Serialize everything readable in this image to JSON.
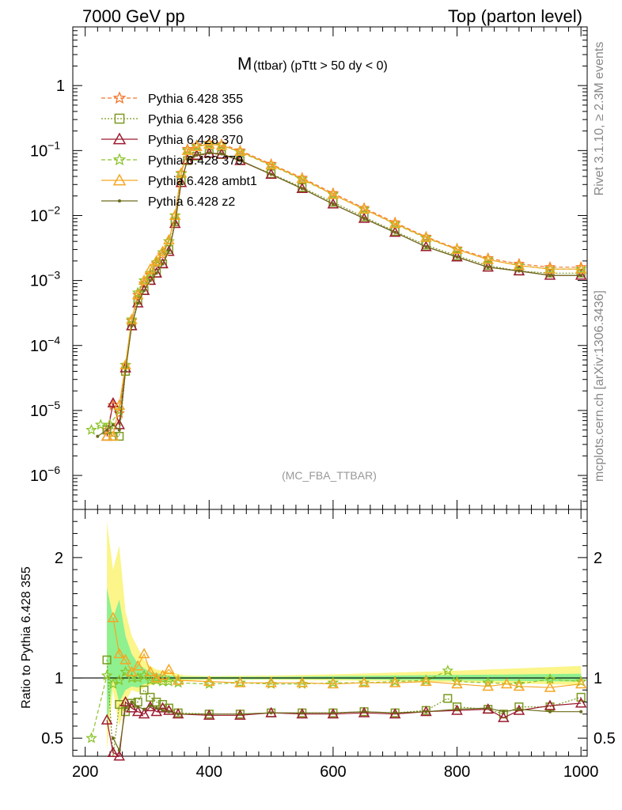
{
  "header": {
    "left": "7000 GeV pp",
    "right": "Top (parton level)"
  },
  "side_labels": {
    "rivet": "Rivet 3.1.10, ≥ 2.3M events",
    "source": "mcplots.cern.ch [arXiv:1306.3436]"
  },
  "chart_data": [
    {
      "type": "line",
      "title_main": "M",
      "title_rest": "(ttbar) (pTtt > 50 dy < 0)",
      "watermark": "(MC_FBA_TTBAR)",
      "xlabel": "",
      "ylabel": "",
      "xlim": [
        180,
        1010
      ],
      "ylim": [
        3e-07,
        8
      ],
      "yscale": "log",
      "ytick_labels": [
        {
          "value": 1,
          "base": "1",
          "exp": ""
        },
        {
          "value": 0.1,
          "base": "10",
          "exp": "−1"
        },
        {
          "value": 0.01,
          "base": "10",
          "exp": "−2"
        },
        {
          "value": 0.001,
          "base": "10",
          "exp": "−3"
        },
        {
          "value": 0.0001,
          "base": "10",
          "exp": "−4"
        },
        {
          "value": 1e-05,
          "base": "10",
          "exp": "−5"
        },
        {
          "value": 1e-06,
          "base": "10",
          "exp": "−6"
        }
      ],
      "legend_placement": "top-left",
      "series": [
        {
          "name": "Pythia 6.428 355",
          "color": "#f4772a",
          "marker": "star",
          "dash": "5,3",
          "x": [
            235,
            245,
            255,
            265,
            275,
            285,
            295,
            305,
            315,
            325,
            335,
            345,
            355,
            365,
            380,
            400,
            420,
            450,
            500,
            550,
            600,
            650,
            700,
            750,
            800,
            850,
            900,
            950,
            1000
          ],
          "y": [
            5e-06,
            1.2e-05,
            9e-06,
            5e-05,
            0.00024,
            0.0006,
            0.0009,
            0.0012,
            0.0018,
            0.0025,
            0.004,
            0.01,
            0.045,
            0.105,
            0.12,
            0.13,
            0.125,
            0.1,
            0.062,
            0.038,
            0.022,
            0.013,
            0.0078,
            0.0047,
            0.0031,
            0.0022,
            0.0018,
            0.0016,
            0.0016
          ]
        },
        {
          "name": "Pythia 6.428 356",
          "color": "#7b9a1f",
          "marker": "square",
          "dash": "2,2",
          "x": [
            235,
            245,
            255,
            265,
            275,
            285,
            295,
            305,
            315,
            325,
            335,
            345,
            355,
            365,
            380,
            400,
            420,
            450,
            500,
            550,
            600,
            650,
            700,
            750,
            800,
            850,
            900,
            950,
            1000
          ],
          "y": [
            5e-06,
            4e-06,
            4e-06,
            4e-05,
            0.0002,
            0.0005,
            0.0007,
            0.001,
            0.0013,
            0.0018,
            0.003,
            0.008,
            0.035,
            0.07,
            0.082,
            0.09,
            0.087,
            0.07,
            0.044,
            0.027,
            0.016,
            0.0095,
            0.0057,
            0.0035,
            0.0024,
            0.0017,
            0.0014,
            0.0013,
            0.0013
          ]
        },
        {
          "name": "Pythia 6.428 370",
          "color": "#9b1b30",
          "marker": "triangle",
          "dash": "",
          "x": [
            235,
            245,
            255,
            265,
            275,
            285,
            295,
            305,
            315,
            325,
            335,
            345,
            355,
            365,
            380,
            400,
            420,
            450,
            500,
            550,
            600,
            650,
            700,
            750,
            800,
            850,
            900,
            950,
            1000
          ],
          "y": [
            4e-06,
            1.3e-05,
            6e-06,
            4.5e-05,
            0.0002,
            0.00045,
            0.0007,
            0.001,
            0.0013,
            0.0018,
            0.0028,
            0.0075,
            0.032,
            0.072,
            0.084,
            0.091,
            0.088,
            0.07,
            0.043,
            0.026,
            0.015,
            0.009,
            0.0055,
            0.0033,
            0.0023,
            0.0016,
            0.0014,
            0.0012,
            0.0012
          ]
        },
        {
          "name": "Pythia 6.428 379",
          "color": "#8bc42a",
          "marker": "star",
          "dash": "5,3",
          "x": [
            210,
            225,
            240,
            255,
            265,
            275,
            285,
            295,
            305,
            315,
            325,
            335,
            345,
            355,
            365,
            380,
            400,
            420,
            450,
            500,
            550,
            600,
            650,
            700,
            750,
            800,
            850,
            900,
            950,
            1000
          ],
          "y": [
            5e-06,
            6e-06,
            6e-06,
            1e-05,
            5e-05,
            0.00025,
            0.00065,
            0.001,
            0.0013,
            0.0019,
            0.0027,
            0.004,
            0.01,
            0.044,
            0.1,
            0.115,
            0.125,
            0.12,
            0.095,
            0.059,
            0.036,
            0.021,
            0.0125,
            0.0074,
            0.0045,
            0.003,
            0.0021,
            0.0017,
            0.0015,
            0.0015
          ]
        },
        {
          "name": "Pythia 6.428 ambt1",
          "color": "#f5a623",
          "marker": "triangle",
          "dash": "",
          "x": [
            235,
            245,
            255,
            265,
            275,
            285,
            295,
            305,
            315,
            325,
            335,
            345,
            355,
            365,
            380,
            400,
            420,
            450,
            500,
            550,
            600,
            650,
            700,
            750,
            800,
            850,
            900,
            950,
            1000
          ],
          "y": [
            4e-06,
            4e-06,
            1.2e-05,
            5e-05,
            0.00025,
            0.0006,
            0.001,
            0.0015,
            0.002,
            0.0028,
            0.0042,
            0.01,
            0.045,
            0.1,
            0.115,
            0.125,
            0.12,
            0.097,
            0.06,
            0.037,
            0.021,
            0.0125,
            0.0075,
            0.0046,
            0.003,
            0.0021,
            0.0017,
            0.0015,
            0.0015
          ]
        },
        {
          "name": "Pythia 6.428 z2",
          "color": "#6b6b1a",
          "marker": "dot",
          "dash": "",
          "x": [
            220,
            235,
            245,
            255,
            265,
            275,
            285,
            295,
            305,
            315,
            325,
            335,
            345,
            355,
            365,
            380,
            400,
            420,
            450,
            500,
            550,
            600,
            650,
            700,
            750,
            800,
            850,
            900,
            950,
            1000
          ],
          "y": [
            4e-06,
            5e-06,
            6e-06,
            5e-06,
            4e-05,
            0.0002,
            0.00045,
            0.0007,
            0.001,
            0.0013,
            0.0018,
            0.0029,
            0.0076,
            0.033,
            0.073,
            0.085,
            0.092,
            0.089,
            0.071,
            0.043,
            0.026,
            0.015,
            0.009,
            0.0055,
            0.0033,
            0.0023,
            0.0016,
            0.0014,
            0.0012,
            0.0012
          ]
        }
      ]
    },
    {
      "type": "line",
      "ylabel": "Ratio to Pythia 6.428 355",
      "xlabel": "",
      "xlim": [
        180,
        1010
      ],
      "ylim": [
        0.35,
        2.4
      ],
      "x_ticks": [
        200,
        400,
        600,
        800,
        1000
      ],
      "y_ticks": [
        0.5,
        1,
        2
      ],
      "y_tick_labels": [
        "0.5",
        "1",
        "2"
      ],
      "reference_line": 1,
      "uncertainty_band": {
        "x": [
          235,
          245,
          255,
          265,
          275,
          285,
          295,
          305,
          315,
          325,
          335,
          345,
          360,
          400,
          500,
          600,
          700,
          800,
          900,
          1000
        ],
        "low": [
          0.4,
          0.9,
          0.6,
          0.8,
          0.9,
          0.88,
          0.92,
          0.94,
          0.95,
          0.96,
          0.96,
          0.97,
          0.98,
          0.985,
          0.985,
          0.98,
          0.975,
          0.965,
          0.955,
          0.94
        ],
        "high": [
          2.3,
          1.9,
          2.1,
          1.55,
          1.35,
          1.25,
          1.15,
          1.1,
          1.07,
          1.06,
          1.05,
          1.04,
          1.02,
          1.015,
          1.02,
          1.03,
          1.045,
          1.06,
          1.08,
          1.1
        ]
      },
      "stat_band": {
        "x": [
          235,
          245,
          255,
          265,
          275,
          285,
          295,
          305,
          315,
          325,
          335,
          345,
          360,
          400,
          500,
          600,
          700,
          800,
          900,
          1000
        ],
        "low": [
          0.6,
          1.0,
          0.8,
          0.9,
          0.93,
          0.92,
          0.95,
          0.96,
          0.97,
          0.97,
          0.98,
          0.985,
          0.99,
          0.99,
          0.99,
          0.99,
          0.985,
          0.98,
          0.975,
          0.97
        ],
        "high": [
          1.75,
          1.5,
          1.65,
          1.35,
          1.2,
          1.12,
          1.08,
          1.05,
          1.04,
          1.03,
          1.02,
          1.015,
          1.01,
          1.01,
          1.01,
          1.015,
          1.02,
          1.025,
          1.03,
          1.035
        ]
      },
      "series": [
        {
          "name": "Pythia 6.428 356",
          "color": "#7b9a1f",
          "marker": "square",
          "dash": "2,2",
          "x": [
            235,
            245,
            255,
            265,
            275,
            285,
            295,
            305,
            315,
            325,
            335,
            350,
            400,
            450,
            500,
            550,
            600,
            650,
            700,
            750,
            785,
            800,
            850,
            875,
            900,
            950,
            1000
          ],
          "y": [
            1.15,
            0.3,
            0.78,
            0.72,
            0.79,
            0.8,
            0.9,
            0.84,
            0.8,
            0.78,
            0.75,
            0.71,
            0.7,
            0.7,
            0.71,
            0.71,
            0.71,
            0.72,
            0.71,
            0.73,
            0.83,
            0.76,
            0.74,
            0.7,
            0.76,
            0.76,
            0.84
          ]
        },
        {
          "name": "Pythia 6.428 370",
          "color": "#9b1b30",
          "marker": "triangle",
          "dash": "",
          "x": [
            235,
            245,
            255,
            265,
            275,
            285,
            295,
            305,
            315,
            325,
            335,
            350,
            400,
            450,
            500,
            550,
            600,
            650,
            700,
            750,
            800,
            850,
            875,
            900,
            950,
            1000
          ],
          "y": [
            0.65,
            0.38,
            0.35,
            0.8,
            0.75,
            0.72,
            0.7,
            0.76,
            0.72,
            0.75,
            0.73,
            0.7,
            0.69,
            0.69,
            0.71,
            0.7,
            0.7,
            0.71,
            0.7,
            0.72,
            0.73,
            0.74,
            0.67,
            0.73,
            0.77,
            0.79
          ]
        },
        {
          "name": "Pythia 6.428 379",
          "color": "#8bc42a",
          "marker": "star",
          "dash": "5,3",
          "x": [
            210,
            235,
            245,
            255,
            265,
            275,
            285,
            295,
            305,
            315,
            325,
            335,
            350,
            400,
            450,
            500,
            550,
            600,
            650,
            700,
            750,
            785,
            800,
            850,
            900,
            950,
            1000
          ],
          "y": [
            0.5,
            1.02,
            0.95,
            0.98,
            1.05,
            1.0,
            1.0,
            1.02,
            0.98,
            0.98,
            0.97,
            0.97,
            0.96,
            0.95,
            0.96,
            0.95,
            0.95,
            0.96,
            0.96,
            0.97,
            0.98,
            1.06,
            0.97,
            0.96,
            0.95,
            0.99,
            0.97
          ]
        },
        {
          "name": "Pythia 6.428 ambt1",
          "color": "#f5a623",
          "marker": "triangle",
          "dash": "",
          "x": [
            245,
            255,
            265,
            275,
            285,
            295,
            305,
            315,
            325,
            335,
            350,
            400,
            450,
            500,
            550,
            600,
            650,
            700,
            750,
            800,
            850,
            880,
            900,
            950,
            1000
          ],
          "y": [
            1.5,
            1.2,
            1.15,
            1.05,
            1.1,
            1.2,
            1.05,
            1.0,
            1.02,
            1.07,
            0.98,
            0.97,
            0.96,
            0.96,
            0.96,
            0.95,
            0.96,
            0.96,
            0.97,
            0.95,
            0.93,
            0.95,
            0.93,
            0.92,
            0.95
          ]
        },
        {
          "name": "Pythia 6.428 z2",
          "color": "#6b6b1a",
          "marker": "dot",
          "dash": "",
          "x": [
            245,
            255,
            265,
            275,
            285,
            295,
            305,
            315,
            325,
            335,
            350,
            400,
            450,
            500,
            550,
            600,
            650,
            700,
            750,
            800,
            850,
            875,
            900,
            950,
            1000
          ],
          "y": [
            0.5,
            0.4,
            0.75,
            0.8,
            0.76,
            0.74,
            0.77,
            0.75,
            0.73,
            0.72,
            0.7,
            0.7,
            0.7,
            0.71,
            0.71,
            0.71,
            0.72,
            0.71,
            0.72,
            0.74,
            0.75,
            0.72,
            0.74,
            0.72,
            0.72
          ]
        }
      ]
    }
  ]
}
